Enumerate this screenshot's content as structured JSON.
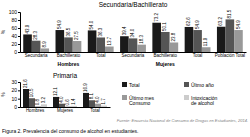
{
  "chart_data": [
    {
      "type": "bar",
      "title": "Secundaria/Bachillerato",
      "ylabel": "%",
      "categories": [
        "Secundaria",
        "Bachillerato",
        "Total",
        "Secundaria",
        "Bachillerato",
        "Total",
        "Población Total"
      ],
      "series": [
        {
          "color": "#1a1a1a",
          "values": [
            43.9,
            54.9,
            54.0,
            39.4,
            73.2,
            62.6,
            63.2
          ]
        },
        {
          "color": "#555555",
          "values": [
            28.3,
            36.5,
            36.3,
            34.0,
            50.1,
            54.9,
            81.5
          ]
        },
        {
          "color": "#999999",
          "values": [
            8.9,
            27.5,
            13.7,
            18.3,
            23.8,
            11.9,
            54.9
          ]
        }
      ],
      "ylim": [
        0,
        100
      ],
      "yticks": [
        0,
        20,
        40,
        60,
        80,
        100
      ],
      "data_labels": true,
      "annotations": [
        "Hombres",
        "Mujeres"
      ]
    },
    {
      "type": "bar",
      "title": "Primaria",
      "ylabel": "%",
      "categories": [
        "Hombres",
        "Mujeres",
        "Total"
      ],
      "series": [
        {
          "name": "Total",
          "color": "#1a1a1a",
          "values": [
            21.6,
            12.1,
            16.9
          ]
        },
        {
          "name": "Últmo año",
          "color": "#555555",
          "values": [
            10.5,
            4.0,
            8.1
          ]
        },
        {
          "name": "Último mes\nConsumo",
          "color": "#999999",
          "values": [
            0.8,
            0.6,
            4.0
          ]
        },
        {
          "name": "Intoxicación\nde alcohol",
          "color": "#cccccc",
          "values": [
            3.2,
            1.4,
            1.7
          ]
        }
      ],
      "ylim": [
        0,
        30
      ],
      "yticks": [
        0,
        10,
        20,
        30
      ],
      "data_labels": true,
      "annotations": [
        "Fuente: Encuesta Nacional de Consumo de Drogas en Estudiantes, 2014.",
        "Figura 2. Prevalencia del consumo de alcohol en estudiantes."
      ]
    }
  ]
}
